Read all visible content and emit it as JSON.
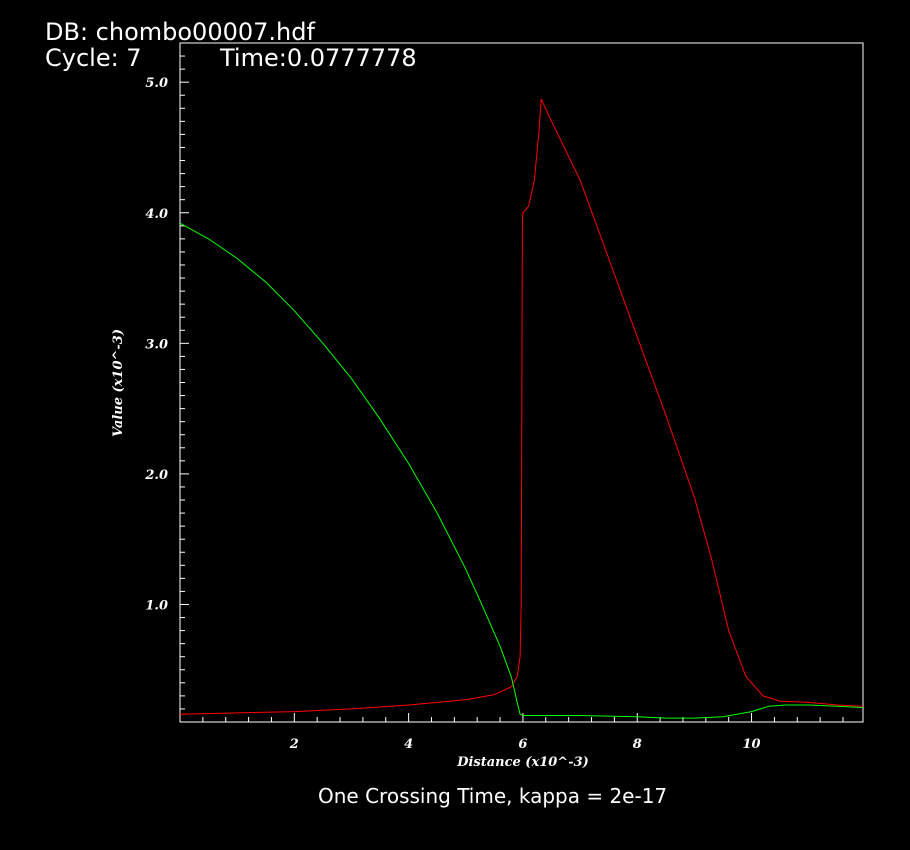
{
  "header": {
    "db_label": "DB: chombo00007.hdf",
    "cycle_label": "Cycle: 7",
    "time_label": "Time:0.0777778"
  },
  "caption": "One Crossing Time, kappa = 2e-17",
  "colors": {
    "background": "#000000",
    "frame": "#ffffff",
    "series_red": "#ff0000",
    "series_green": "#00ff00"
  },
  "chart_data": {
    "type": "line",
    "xlabel": "Distance (x10^-3)",
    "ylabel": "Value (x10^-3)",
    "xlim": [
      0.0,
      11.95
    ],
    "ylim": [
      0.1,
      5.3
    ],
    "grid": false,
    "x_ticks": [
      {
        "value": 2,
        "label": "2"
      },
      {
        "value": 4,
        "label": "4"
      },
      {
        "value": 6,
        "label": "6"
      },
      {
        "value": 8,
        "label": "8"
      },
      {
        "value": 10,
        "label": "10"
      }
    ],
    "y_ticks": [
      {
        "value": 1.0,
        "label": "1.0"
      },
      {
        "value": 2.0,
        "label": "2.0"
      },
      {
        "value": 3.0,
        "label": "3.0"
      },
      {
        "value": 4.0,
        "label": "4.0"
      },
      {
        "value": 5.0,
        "label": "5.0"
      }
    ],
    "series": [
      {
        "color": "#ff0000",
        "x": [
          0.0,
          1.0,
          2.0,
          3.0,
          4.0,
          5.0,
          5.5,
          5.8,
          5.9,
          5.95,
          5.97,
          5.98,
          5.99,
          6.0,
          6.1,
          6.2,
          6.28,
          6.32,
          6.5,
          7.0,
          7.5,
          8.0,
          8.5,
          9.0,
          9.3,
          9.6,
          9.9,
          10.2,
          10.5,
          11.0,
          11.5,
          11.95
        ],
        "y": [
          0.16,
          0.17,
          0.18,
          0.2,
          0.23,
          0.27,
          0.31,
          0.37,
          0.45,
          0.6,
          1.0,
          2.5,
          3.95,
          4.0,
          4.05,
          4.25,
          4.62,
          4.87,
          4.7,
          4.25,
          3.65,
          3.05,
          2.45,
          1.82,
          1.35,
          0.8,
          0.45,
          0.3,
          0.26,
          0.25,
          0.23,
          0.22
        ]
      },
      {
        "color": "#00ff00",
        "x": [
          0.0,
          0.5,
          1.0,
          1.5,
          2.0,
          2.5,
          3.0,
          3.5,
          4.0,
          4.5,
          5.0,
          5.3,
          5.6,
          5.8,
          5.9,
          5.95,
          6.0,
          6.2,
          7.0,
          8.0,
          8.5,
          9.0,
          9.5,
          10.0,
          10.3,
          10.6,
          11.0,
          11.5,
          11.95
        ],
        "y": [
          3.92,
          3.8,
          3.65,
          3.47,
          3.25,
          3.0,
          2.73,
          2.42,
          2.08,
          1.7,
          1.27,
          0.98,
          0.68,
          0.44,
          0.25,
          0.16,
          0.15,
          0.15,
          0.15,
          0.14,
          0.13,
          0.13,
          0.14,
          0.18,
          0.22,
          0.23,
          0.23,
          0.22,
          0.21
        ]
      }
    ]
  }
}
